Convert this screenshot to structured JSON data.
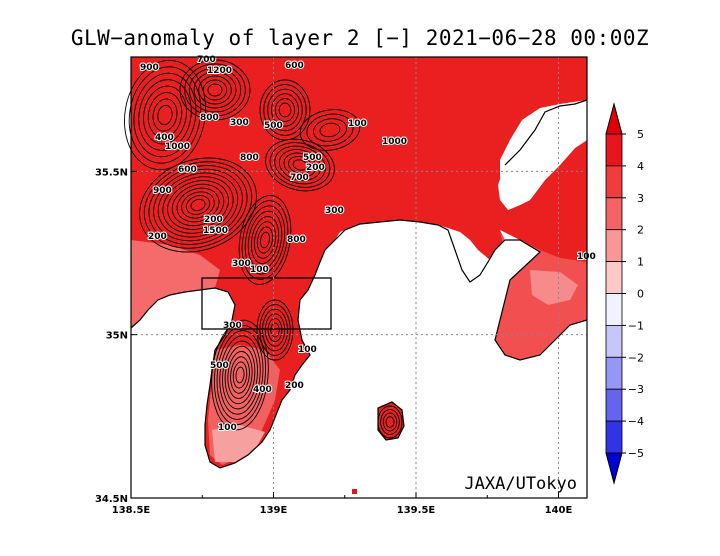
{
  "title": "GLW−anomaly of layer 2 [−] 2021−06−28 00:00Z",
  "credit": "JAXA/UTokyo",
  "x_ticks": [
    {
      "value": 138.5,
      "label": "138.5E"
    },
    {
      "value": 139.0,
      "label": "139E"
    },
    {
      "value": 139.5,
      "label": "139.5E"
    },
    {
      "value": 140.0,
      "label": "140E"
    }
  ],
  "y_ticks": [
    {
      "value": 34.5,
      "label": "34.5N"
    },
    {
      "value": 35.0,
      "label": "35N"
    },
    {
      "value": 35.5,
      "label": "35.5N"
    }
  ],
  "colorbar": {
    "levels": [
      "5",
      "4",
      "3",
      "2",
      "1",
      "0",
      "−1",
      "−2",
      "−3",
      "−4",
      "−5"
    ],
    "colors": [
      "#e8141e",
      "#ef3c3c",
      "#f56464",
      "#f99696",
      "#fcc8c8",
      "#f2f2ff",
      "#c6c6fa",
      "#9696f4",
      "#6464ee",
      "#3232e6",
      "#0a0ae0"
    ],
    "over_color": "#e0000a",
    "under_color": "#0000d8"
  },
  "contour_labels": [
    "900",
    "1200",
    "700",
    "600",
    "800",
    "400",
    "500",
    "300",
    "200",
    "100",
    "1000",
    "600",
    "900",
    "800",
    "700",
    "500",
    "200",
    "1500",
    "800",
    "300",
    "200",
    "100",
    "1000",
    "300",
    "100",
    "400",
    "500",
    "200",
    "100",
    "300",
    "100"
  ],
  "map": {
    "ocean_color": "#ffffff",
    "land_high_color": "#e61414",
    "land_mid_color": "#f03c3c",
    "land_low_color": "#f78080",
    "contour_color": "#000000",
    "box_label": ""
  }
}
